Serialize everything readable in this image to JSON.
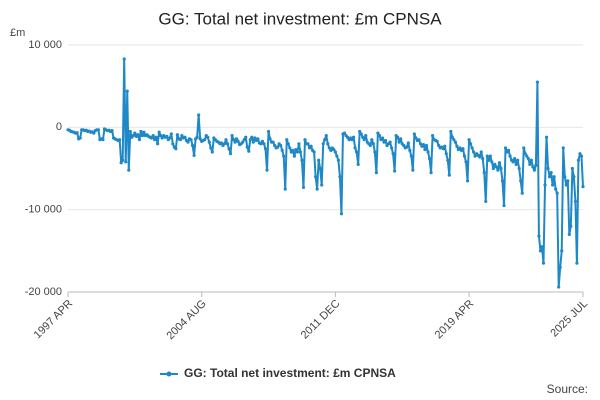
{
  "chart_data": {
    "type": "line",
    "title": "GG: Total net investment: £m CPNSA",
    "y_unit": "£m",
    "source": "Source:",
    "categories": [
      "1997 APR",
      null,
      null,
      null,
      null,
      null,
      null,
      null,
      null,
      null,
      null,
      null,
      null,
      null,
      null,
      null,
      null,
      null,
      null,
      null,
      null,
      null,
      null,
      null,
      null,
      null,
      null,
      null,
      null,
      null,
      null,
      null,
      null,
      null,
      null,
      null,
      null,
      null,
      null,
      null,
      null,
      null,
      null,
      null,
      null,
      null,
      null,
      null,
      null,
      null,
      null,
      null,
      null,
      null,
      null,
      null,
      null,
      null,
      null,
      null,
      null,
      null,
      null,
      null,
      null,
      null,
      null,
      null,
      null,
      null,
      null,
      null,
      null,
      null,
      null,
      null,
      null,
      null,
      null,
      null,
      null,
      null,
      null,
      null,
      null,
      null,
      null,
      null,
      "2004 AUG",
      null,
      null,
      null,
      null,
      null,
      null,
      null,
      null,
      null,
      null,
      null,
      null,
      null,
      null,
      null,
      null,
      null,
      null,
      null,
      null,
      null,
      null,
      null,
      null,
      null,
      null,
      null,
      null,
      null,
      null,
      null,
      null,
      null,
      null,
      null,
      null,
      null,
      null,
      null,
      null,
      null,
      null,
      null,
      null,
      null,
      null,
      null,
      null,
      null,
      null,
      null,
      null,
      null,
      null,
      null,
      null,
      null,
      null,
      null,
      null,
      null,
      null,
      null,
      null,
      null,
      null,
      null,
      null,
      null,
      null,
      null,
      null,
      null,
      null,
      null,
      null,
      null,
      null,
      null,
      null,
      null,
      null,
      null,
      null,
      null,
      null,
      null,
      "2011 DEC",
      null,
      null,
      null,
      null,
      null,
      null,
      null,
      null,
      null,
      null,
      null,
      null,
      null,
      null,
      null,
      null,
      null,
      null,
      null,
      null,
      null,
      null,
      null,
      null,
      null,
      null,
      null,
      null,
      null,
      null,
      null,
      null,
      null,
      null,
      null,
      null,
      null,
      null,
      null,
      null,
      null,
      null,
      null,
      null,
      null,
      null,
      null,
      null,
      null,
      null,
      null,
      null,
      null,
      null,
      null,
      null,
      null,
      null,
      null,
      null,
      null,
      null,
      null,
      null,
      null,
      null,
      null,
      null,
      null,
      null,
      null,
      null,
      null,
      null,
      null,
      null,
      null,
      null,
      null,
      null,
      null,
      null,
      null,
      null,
      null,
      null,
      null,
      "2019 APR",
      null,
      null,
      null,
      null,
      null,
      null,
      null,
      null,
      null,
      null,
      null,
      null,
      null,
      null,
      null,
      null,
      null,
      null,
      null,
      null,
      null,
      null,
      null,
      null,
      null,
      null,
      null,
      null,
      null,
      null,
      null,
      null,
      null,
      null,
      null,
      null,
      null,
      null,
      null,
      null,
      null,
      null,
      null,
      null,
      null,
      null,
      null,
      null,
      null,
      null,
      null,
      null,
      null,
      null,
      null,
      null,
      null,
      null,
      null,
      null,
      null,
      null,
      null,
      null,
      null,
      null,
      null,
      null,
      null,
      null,
      null,
      null,
      null,
      null,
      "2025 JUL"
    ],
    "series": [
      {
        "name": "GG: Total net investment: £m CPNSA",
        "color": "#1f88c6",
        "values": [
          -300,
          -350,
          -500,
          -550,
          -600,
          -700,
          -650,
          -1400,
          -1300,
          -300,
          -300,
          -400,
          -350,
          -500,
          -450,
          -600,
          -550,
          -700,
          -400,
          -300,
          -300,
          -1500,
          -1400,
          -1500,
          -200,
          -300,
          -400,
          -350,
          -500,
          -400,
          -1300,
          -1400,
          -1500,
          -1600,
          -1500,
          -4300,
          -4000,
          8300,
          -4200,
          4400,
          -5200,
          -500,
          -1200,
          -1000,
          -700,
          -1100,
          -900,
          -1500,
          -500,
          -1000,
          -600,
          -1000,
          -900,
          -1100,
          -1200,
          -1300,
          -1000,
          -1500,
          -1200,
          -2000,
          -600,
          -1000,
          -1300,
          -1000,
          -1200,
          -1100,
          -1500,
          -1300,
          -800,
          -2000,
          -2400,
          -2600,
          -900,
          -1400,
          -1500,
          -1000,
          -1300,
          -1200,
          -1600,
          -1800,
          -1400,
          -1500,
          -2200,
          -3400,
          -1400,
          -1200,
          1500,
          -1400,
          -1700,
          -1600,
          -1500,
          -1000,
          -1200,
          -1800,
          -2500,
          -3000,
          -1300,
          -1500,
          -1700,
          -1800,
          -2000,
          -1900,
          -2200,
          -2000,
          -1500,
          -2000,
          -2600,
          -3200,
          -1000,
          -1500,
          -1800,
          -1400,
          -1700,
          -2100,
          -2000,
          -1800,
          -1500,
          -1200,
          -2400,
          -2900,
          -1500,
          -1200,
          -1800,
          -1300,
          -1600,
          -1400,
          -1900,
          -2000,
          -1700,
          -2000,
          -2600,
          -5200,
          -500,
          -1400,
          -1800,
          -1800,
          -2200,
          -2500,
          -2400,
          -2000,
          -2200,
          -2800,
          -3500,
          -7500,
          -1500,
          -2000,
          -2500,
          -3000,
          -2800,
          -3500,
          -2700,
          -3000,
          -2000,
          -3000,
          -4000,
          -7300,
          -1500,
          -2000,
          -2000,
          -2500,
          -2300,
          -2800,
          -3000,
          -6000,
          -7500,
          -4000,
          -5000,
          -7000,
          -2000,
          -1500,
          -1000,
          -2000,
          -2500,
          -2800,
          -2500,
          -2700,
          -3000,
          -3500,
          -4000,
          -6000,
          -10500,
          -800,
          -700,
          -1000,
          -1200,
          -1500,
          -1300,
          -1500,
          -1200,
          -2500,
          -3000,
          -4500,
          -500,
          -800,
          -1200,
          -1500,
          -1000,
          -1800,
          -2000,
          -2200,
          -1500,
          -2000,
          -3000,
          -5500,
          -700,
          -1000,
          -1500,
          -1300,
          -1800,
          -1600,
          -2200,
          -2000,
          -1800,
          -2500,
          -3200,
          -5300,
          -1000,
          -1200,
          -1800,
          -1400,
          -2000,
          -2200,
          -2500,
          -2400,
          -1900,
          -2800,
          -3500,
          -5200,
          -800,
          -1300,
          -1600,
          -1500,
          -2000,
          -2300,
          -2100,
          -2700,
          -2200,
          -3000,
          -3800,
          -5500,
          -1000,
          -1500,
          -1600,
          -1700,
          -2200,
          -2500,
          -2400,
          -2600,
          -2300,
          -3200,
          -4000,
          -5800,
          -500,
          -1200,
          -1500,
          -1800,
          -2300,
          -2700,
          -2500,
          -2800,
          -2600,
          -3500,
          -4200,
          -6500,
          -1500,
          -2000,
          -2500,
          -3000,
          -3500,
          -3200,
          -3400,
          -3600,
          -3000,
          -3800,
          -5500,
          -9000,
          -3500,
          -4000,
          -3500,
          -4200,
          -5000,
          -4500,
          -4800,
          -5200,
          -4300,
          -5000,
          -6500,
          -9500,
          -2500,
          -3000,
          -2800,
          -3500,
          -4000,
          -4200,
          -3800,
          -4500,
          -4000,
          -5000,
          -6500,
          -8000,
          -2500,
          -3200,
          -3500,
          -3800,
          -4500,
          -4000,
          -4800,
          -5200,
          -4600,
          5500,
          -13200,
          -15000,
          -14500,
          -16500,
          -7000,
          -1200,
          -5000,
          -6000,
          -5500,
          -7000,
          -6000,
          -7500,
          -8000,
          -19400,
          -17000,
          -15000,
          -2500,
          -6000,
          -7000,
          -6500,
          -13000,
          -12000,
          -5000,
          -6000,
          -9000,
          -16500,
          -4000,
          -3200,
          -3500,
          -7200
        ]
      }
    ],
    "ylim": [
      -20000,
      10000
    ],
    "yticks": [
      {
        "value": -20000,
        "label": "-20 000"
      },
      {
        "value": -10000,
        "label": "-10 000"
      },
      0,
      {
        "value": 10000,
        "label": "10 000"
      }
    ],
    "grid": true,
    "legend": "bottom"
  }
}
